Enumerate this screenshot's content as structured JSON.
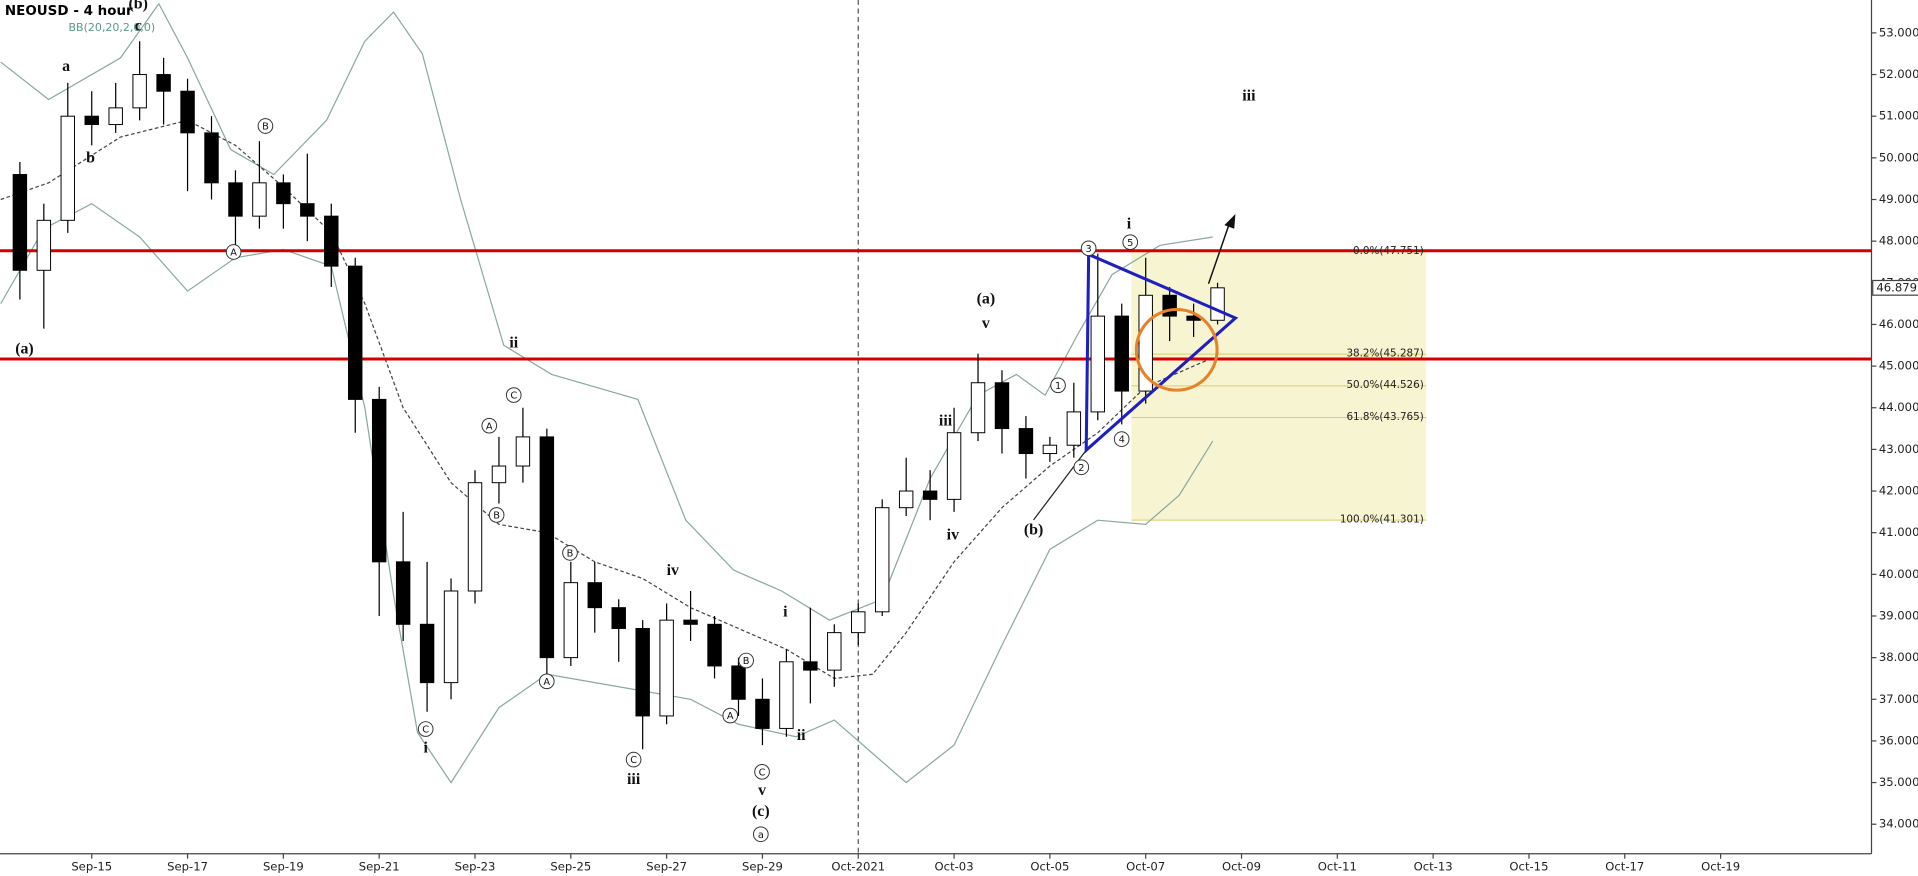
{
  "chart_data": {
    "type": "candlestick",
    "title": "NEOUSD",
    "subtitle": "- 4 hour",
    "indicator": "BB(20,20,2,0,0)",
    "xlim": [
      -1.915,
      37.15
    ],
    "ylim": [
      33.29,
      53.79
    ],
    "xticks": [
      {
        "value": 0,
        "label": "Sep-15"
      },
      {
        "value": 2,
        "label": "Sep-17"
      },
      {
        "value": 4,
        "label": "Sep-19"
      },
      {
        "value": 6,
        "label": "Sep-21"
      },
      {
        "value": 8,
        "label": "Sep-23"
      },
      {
        "value": 10,
        "label": "Sep-25"
      },
      {
        "value": 12,
        "label": "Sep-27"
      },
      {
        "value": 14,
        "label": "Sep-29"
      },
      {
        "value": 16,
        "label": "Oct-2021"
      },
      {
        "value": 18,
        "label": "Oct-03"
      },
      {
        "value": 20,
        "label": "Oct-05"
      },
      {
        "value": 22,
        "label": "Oct-07"
      },
      {
        "value": 24,
        "label": "Oct-09"
      },
      {
        "value": 26,
        "label": "Oct-11"
      },
      {
        "value": 28,
        "label": "Oct-13"
      },
      {
        "value": 30,
        "label": "Oct-15"
      },
      {
        "value": 32,
        "label": "Oct-17"
      },
      {
        "value": 34,
        "label": "Oct-19"
      }
    ],
    "yticks": [
      {
        "value": 34,
        "label": "34.000"
      },
      {
        "value": 35,
        "label": "35.000"
      },
      {
        "value": 36,
        "label": "36.000"
      },
      {
        "value": 37,
        "label": "37.000"
      },
      {
        "value": 38,
        "label": "38.000"
      },
      {
        "value": 39,
        "label": "39.000"
      },
      {
        "value": 40,
        "label": "40.000"
      },
      {
        "value": 41,
        "label": "41.000"
      },
      {
        "value": 42,
        "label": "42.000"
      },
      {
        "value": 43,
        "label": "43.000"
      },
      {
        "value": 44,
        "label": "44.000"
      },
      {
        "value": 45,
        "label": "45.000"
      },
      {
        "value": 46,
        "label": "46.000"
      },
      {
        "value": 47,
        "label": "47.000"
      },
      {
        "value": 48,
        "label": "48.000"
      },
      {
        "value": 49,
        "label": "49.000"
      },
      {
        "value": 50,
        "label": "50.000"
      },
      {
        "value": 51,
        "label": "51.000"
      },
      {
        "value": 52,
        "label": "52.000"
      },
      {
        "value": 53,
        "label": "53.000"
      }
    ],
    "up_color": "#ffffff",
    "down_color": "#000000",
    "x": [
      -1.5,
      -1,
      -0.5,
      0,
      0.5,
      1,
      1.5,
      2,
      2.5,
      3,
      3.5,
      4,
      4.5,
      5,
      5.5,
      6,
      6.5,
      7,
      7.5,
      8,
      8.5,
      9,
      9.5,
      10,
      10.5,
      11,
      11.5,
      12,
      12.5,
      13,
      13.5,
      14,
      14.5,
      15,
      15.5,
      16,
      16.5,
      17,
      17.5,
      18,
      18.5,
      19,
      19.5,
      20,
      20.5,
      21,
      21.5,
      22,
      22.5,
      23,
      23.5
    ],
    "open": [
      49.6,
      47.3,
      48.5,
      51.0,
      50.8,
      51.2,
      52.0,
      51.6,
      50.6,
      49.4,
      48.6,
      49.4,
      48.9,
      48.6,
      47.4,
      44.2,
      40.3,
      38.8,
      37.4,
      39.6,
      42.2,
      42.6,
      43.3,
      38.0,
      39.8,
      39.2,
      38.7,
      36.6,
      38.9,
      38.8,
      37.8,
      37.0,
      36.3,
      37.9,
      37.7,
      38.6,
      39.1,
      41.6,
      42.0,
      41.8,
      43.4,
      44.6,
      43.5,
      42.9,
      43.1,
      43.9,
      46.2,
      44.4,
      46.7,
      46.2,
      46.1
    ],
    "high": [
      49.9,
      48.9,
      51.8,
      51.6,
      51.8,
      52.8,
      52.4,
      51.9,
      51.0,
      49.7,
      50.4,
      49.6,
      50.1,
      48.9,
      47.6,
      44.5,
      41.5,
      40.3,
      39.9,
      42.5,
      43.3,
      44.0,
      43.5,
      40.3,
      40.3,
      39.4,
      38.9,
      39.3,
      39.6,
      39.0,
      38.0,
      37.5,
      38.2,
      39.2,
      38.8,
      39.3,
      41.8,
      42.8,
      42.5,
      44.0,
      45.3,
      44.9,
      43.8,
      43.3,
      44.6,
      47.7,
      46.5,
      47.6,
      46.9,
      46.5,
      47.0
    ],
    "low": [
      46.6,
      45.9,
      48.2,
      50.3,
      50.6,
      50.9,
      50.8,
      49.2,
      49.0,
      47.9,
      48.3,
      48.3,
      48.0,
      46.9,
      43.4,
      39.0,
      38.4,
      36.7,
      37.0,
      39.3,
      41.7,
      42.2,
      37.6,
      37.8,
      38.6,
      37.9,
      35.8,
      36.4,
      38.4,
      37.5,
      36.6,
      35.9,
      36.1,
      36.9,
      37.3,
      38.3,
      39.0,
      41.4,
      41.3,
      41.5,
      43.2,
      42.9,
      42.3,
      42.7,
      42.8,
      43.7,
      43.6,
      44.1,
      45.6,
      45.7,
      46.0
    ],
    "close": [
      47.3,
      48.5,
      51.0,
      50.8,
      51.2,
      52.0,
      51.6,
      50.6,
      49.4,
      48.6,
      49.4,
      48.9,
      48.6,
      47.4,
      44.2,
      40.3,
      38.8,
      37.4,
      39.6,
      42.2,
      42.6,
      43.3,
      38.0,
      39.8,
      39.2,
      38.7,
      36.6,
      38.9,
      38.8,
      37.8,
      37.0,
      36.3,
      37.9,
      37.7,
      38.6,
      39.1,
      41.6,
      42.0,
      41.8,
      43.4,
      44.6,
      43.5,
      42.9,
      43.1,
      43.9,
      46.2,
      44.4,
      46.7,
      46.2,
      46.1,
      46.879
    ],
    "bands": [
      {
        "color": "#8aa8a0",
        "dashed": false,
        "x": [
          -1.9,
          -0.9,
          0.6,
          1.4,
          2.0,
          2.9,
          3.8,
          4.9,
          5.7,
          6.3,
          6.9,
          7.7,
          8.6,
          9.6,
          11.4,
          12.4,
          13.4,
          14.4,
          15.4,
          16.5,
          17.5,
          18.5,
          19.3,
          19.9,
          20.6,
          21.3,
          22.3,
          23.4
        ],
        "values": [
          52.3,
          51.4,
          52.4,
          53.7,
          52.4,
          50.2,
          49.6,
          50.9,
          52.8,
          53.5,
          52.5,
          49.0,
          45.5,
          44.8,
          44.2,
          41.3,
          40.1,
          39.6,
          38.9,
          39.4,
          42.3,
          44.3,
          44.8,
          44.3,
          45.8,
          47.2,
          47.9,
          48.1
        ]
      },
      {
        "color": "#444444",
        "dashed": true,
        "x": [
          -1.9,
          -0.9,
          0.6,
          2.0,
          3.0,
          4.0,
          5.0,
          5.7,
          6.5,
          7.5,
          8.5,
          9.5,
          10.5,
          11.5,
          12.5,
          13.5,
          14.5,
          15.5,
          16.3,
          17.0,
          18.0,
          19.0,
          20.0,
          21.0,
          22.0,
          23.4
        ],
        "values": [
          49.0,
          49.4,
          50.5,
          50.9,
          50.3,
          49.3,
          48.2,
          46.5,
          44.0,
          42.2,
          41.2,
          41.0,
          40.3,
          39.9,
          39.2,
          38.7,
          38.2,
          37.5,
          37.6,
          38.6,
          40.3,
          41.6,
          42.6,
          43.4,
          44.5,
          45.2
        ]
      },
      {
        "color": "#8aa8a0",
        "dashed": false,
        "x": [
          -1.9,
          -1.0,
          0.0,
          1.0,
          2.0,
          3.0,
          4.0,
          5.0,
          5.7,
          6.3,
          6.8,
          7.5,
          8.5,
          9.5,
          11.0,
          12.5,
          13.5,
          14.7,
          15.5,
          16.5,
          17.0,
          18.0,
          19.0,
          20.0,
          21.0,
          22.0,
          22.7,
          23.4
        ],
        "values": [
          46.5,
          48.3,
          48.9,
          48.1,
          46.8,
          47.6,
          47.8,
          47.4,
          44.0,
          39.5,
          36.2,
          35.0,
          36.8,
          37.6,
          37.3,
          37.0,
          36.4,
          36.1,
          36.5,
          35.5,
          35.0,
          35.9,
          38.3,
          40.6,
          41.3,
          41.2,
          41.9,
          43.2
        ]
      }
    ],
    "hlines": [
      47.77,
      45.17
    ],
    "hline_color": "#d40000",
    "fib_levels": [
      {
        "value": 47.751,
        "label": "0.0%(47.751)"
      },
      {
        "value": 45.287,
        "label": "38.2%(45.287)"
      },
      {
        "value": 44.526,
        "label": "50.0%(44.526)"
      },
      {
        "value": 43.765,
        "label": "61.8%(43.765)"
      },
      {
        "value": 41.301,
        "label": "100.0%(41.301)"
      }
    ],
    "fib_color": "#f7f4d2",
    "last_price": 46.879,
    "annotations": [
      "(b)",
      "c",
      "a",
      "b",
      "(a)",
      "B",
      "A",
      "ii",
      "C",
      "A",
      "B",
      "C",
      "i",
      "A",
      "B",
      "iv",
      "C",
      "iii",
      "B",
      "A",
      "C",
      "v",
      "(c)",
      "a",
      "i",
      "ii",
      "iii",
      "iv",
      "v",
      "(a)",
      "(b)",
      "i",
      "5",
      "3",
      "1",
      "2",
      "4",
      "iii"
    ]
  }
}
